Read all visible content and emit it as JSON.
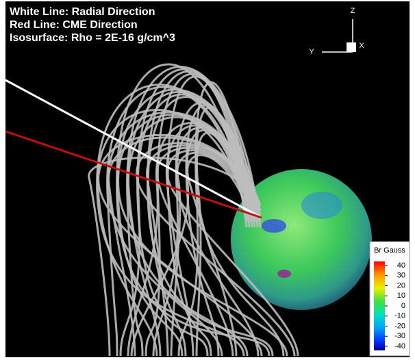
{
  "annotations": [
    "White Line: Radial Direction",
    "Red Line: CME Direction",
    "Isosurface: Rho = 2E-16 g/cm^3"
  ],
  "axes_triad": {
    "z": "Z",
    "y": "Y",
    "x": "X"
  },
  "colorbar": {
    "title": "Br Gauss",
    "lim": [
      -40,
      40
    ],
    "ticks": [
      40,
      30,
      20,
      10,
      0,
      -10,
      -20,
      -30,
      -40
    ]
  }
}
